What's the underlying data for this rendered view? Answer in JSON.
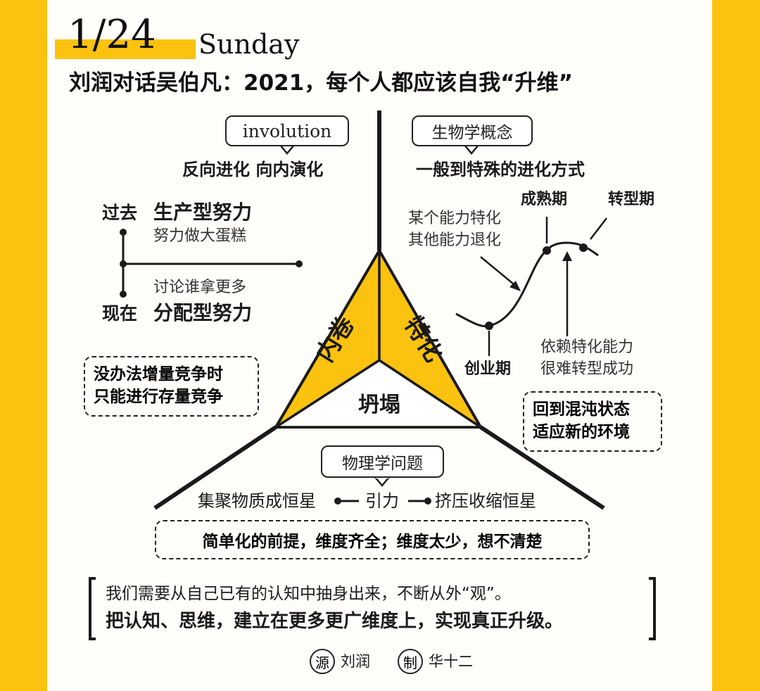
{
  "header": {
    "date": "1/24",
    "weekday": "Sunday",
    "title": "刘润对话吴伯凡：2021，每个人都应该自我“升维”"
  },
  "involution": {
    "tag": "involution",
    "subtitle": "反向进化  向内演化",
    "past_label": "过去",
    "past_effort": "生产型努力",
    "past_desc": "努力做大蛋糕",
    "present_desc": "讨论谁拿更多",
    "present_label": "现在",
    "present_effort": "分配型努力",
    "note_line1": "没办法增量竞争时",
    "note_line2": "只能进行存量竞争"
  },
  "specialization": {
    "tag": "生物学概念",
    "subtitle": "一般到特殊的进化方式",
    "left_note_line1": "某个能力特化",
    "left_note_line2": "其他能力退化",
    "mature": "成熟期",
    "transition": "转型期",
    "startup": "创业期",
    "right_note_line1": "依赖特化能力",
    "right_note_line2": "很难转型成功",
    "note_line1": "回到混沌状态",
    "note_line2": "适应新的环境"
  },
  "triangle": {
    "left": "内卷",
    "right": "特化",
    "bottom": "坍塌"
  },
  "collapse": {
    "tag": "物理学问题",
    "left": "集聚物质成恒星",
    "center": "引力",
    "right": "挤压收缩恒星",
    "note": "简单化的前提，维度齐全；维度太少，想不清楚"
  },
  "quote": {
    "line1": "我们需要从自己已有的认知中抽身出来，不断从外“观”。",
    "line2": "把认知、思维，建立在更多更广维度上，实现真正升级。"
  },
  "credits": {
    "source_icon": "源",
    "source_name": "刘润",
    "maker_icon": "制",
    "maker_name": "华十二"
  },
  "colors": {
    "accent": "#fbc20f",
    "ink": "#1a1a1a",
    "paper": "#fffefa"
  }
}
